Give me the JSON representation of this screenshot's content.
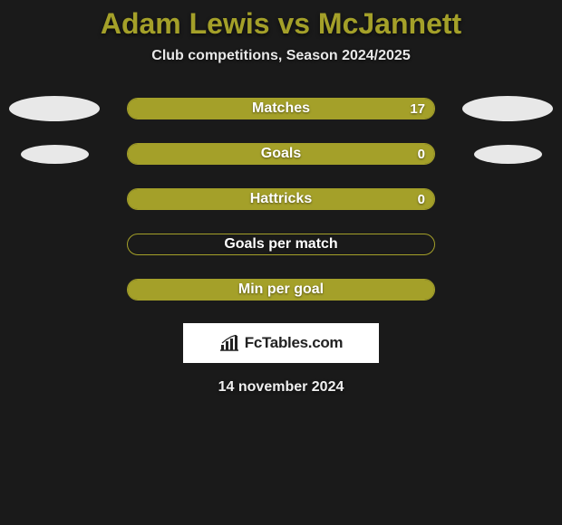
{
  "title": {
    "player1": "Adam Lewis",
    "vs": "vs",
    "player2": "McJannett",
    "color": "#a4a029",
    "fontsize": 32
  },
  "subtitle": {
    "text": "Club competitions, Season 2024/2025",
    "color": "#e8e8e8",
    "fontsize": 16
  },
  "colors": {
    "background": "#1a1a1a",
    "bar_fill": "#a4a029",
    "bar_border": "#a4a029",
    "ellipse": "#e8e8e8",
    "text": "#ffffff"
  },
  "stats": [
    {
      "label": "Matches",
      "left_value": null,
      "right_value": "17",
      "fill_pct": 100,
      "show_left_ellipse": true,
      "show_right_ellipse": true,
      "left_ellipse_size": 1.0,
      "right_ellipse_size": 1.0
    },
    {
      "label": "Goals",
      "left_value": null,
      "right_value": "0",
      "fill_pct": 100,
      "show_left_ellipse": true,
      "show_right_ellipse": true,
      "left_ellipse_size": 0.75,
      "right_ellipse_size": 0.75
    },
    {
      "label": "Hattricks",
      "left_value": null,
      "right_value": "0",
      "fill_pct": 100,
      "show_left_ellipse": false,
      "show_right_ellipse": false
    },
    {
      "label": "Goals per match",
      "left_value": null,
      "right_value": null,
      "fill_pct": 0,
      "show_left_ellipse": false,
      "show_right_ellipse": false
    },
    {
      "label": "Min per goal",
      "left_value": null,
      "right_value": null,
      "fill_pct": 100,
      "show_left_ellipse": false,
      "show_right_ellipse": false
    }
  ],
  "logo": {
    "text": "FcTables.com",
    "box_bg": "#ffffff",
    "text_color": "#222222"
  },
  "date": "14 november 2024"
}
